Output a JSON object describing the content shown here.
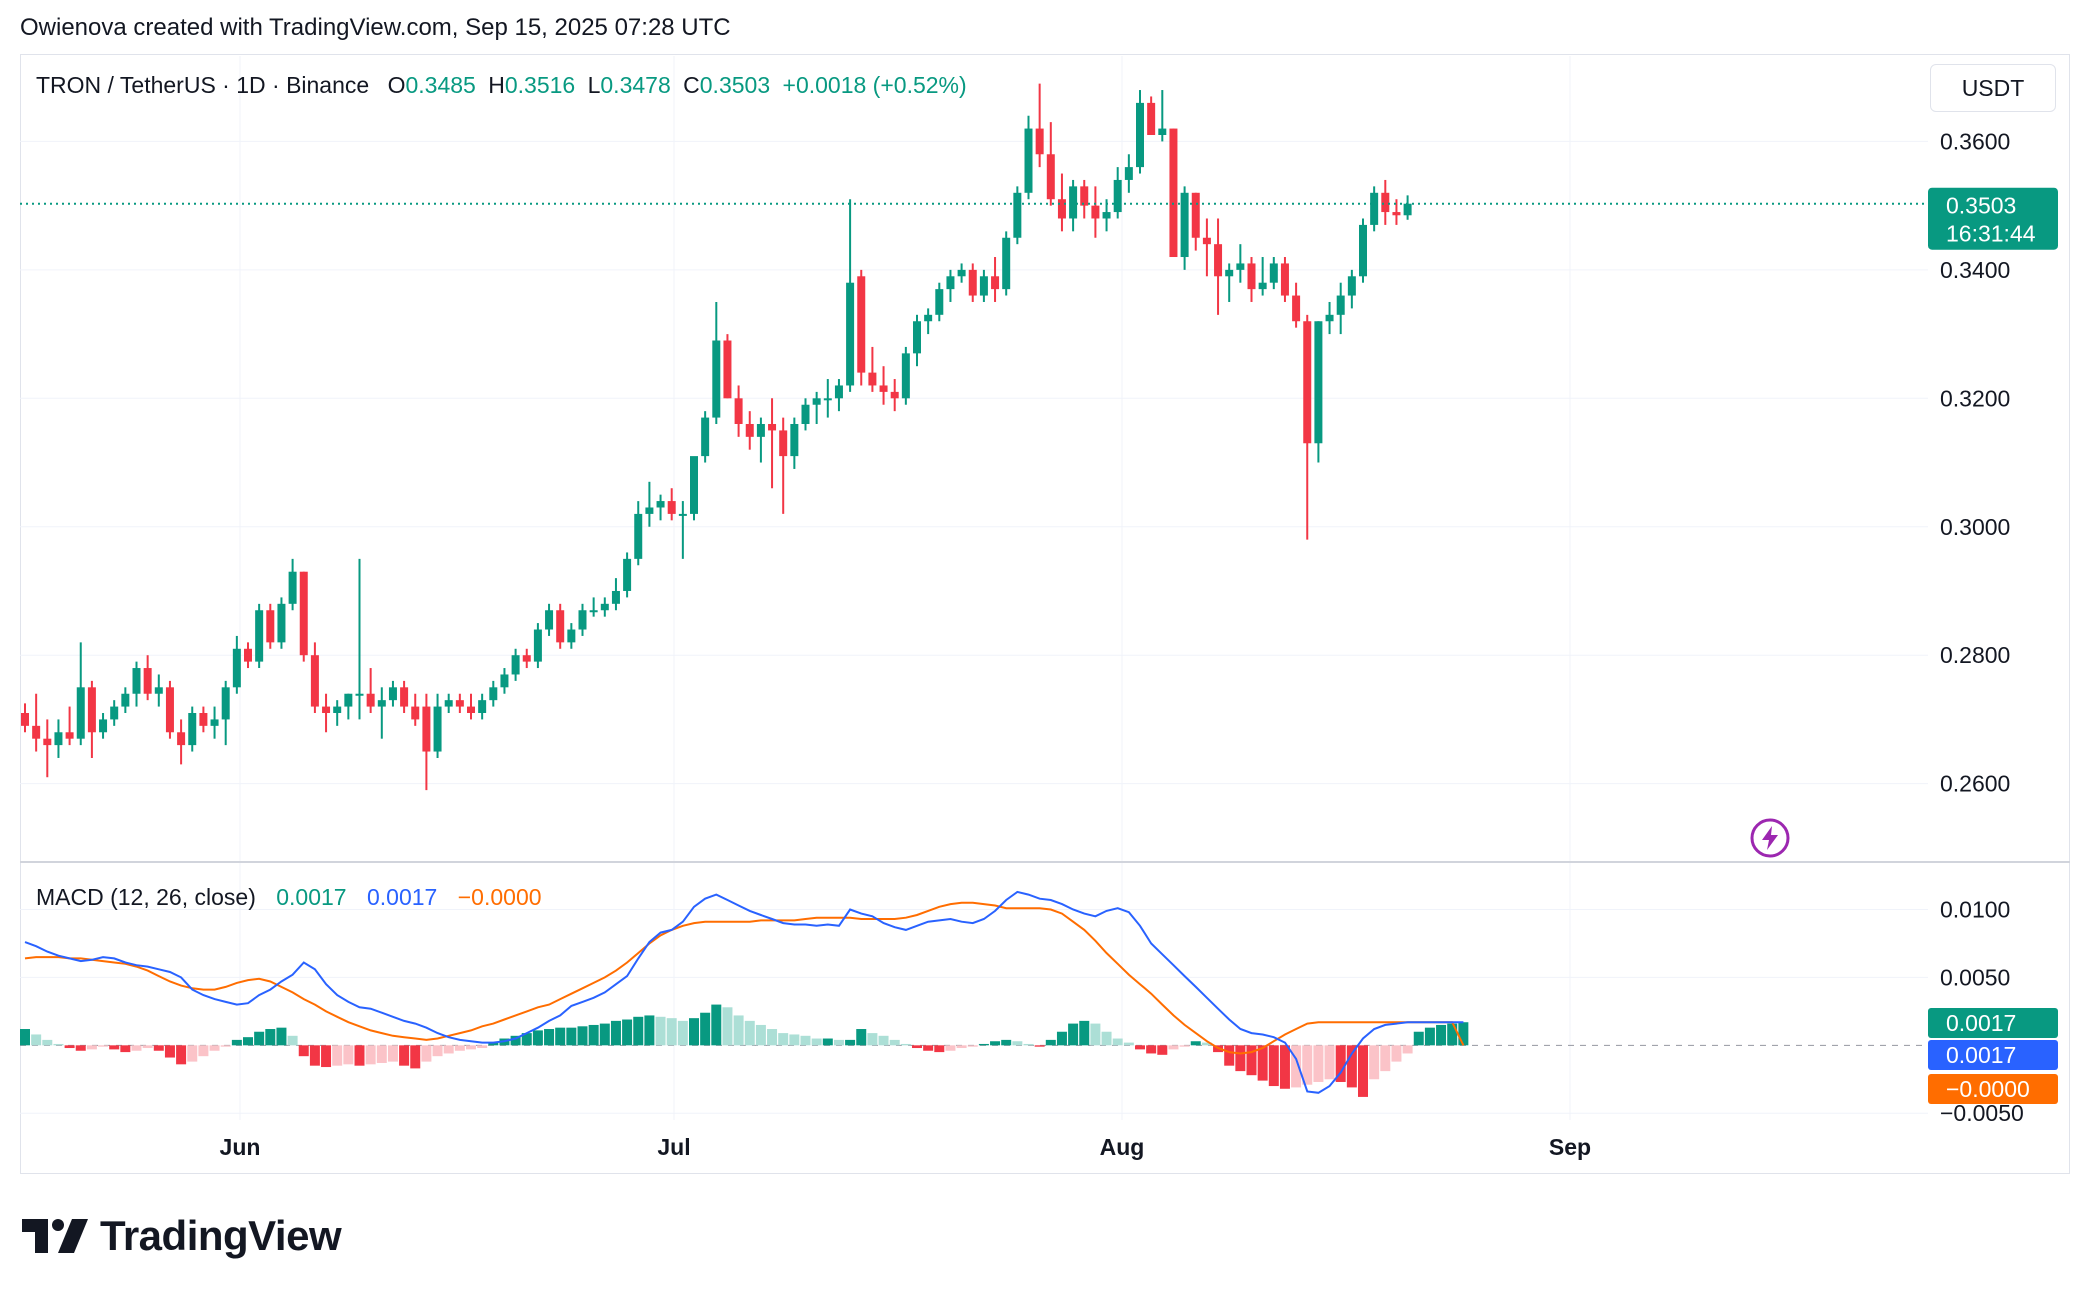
{
  "credit": "Owienova created with TradingView.com, Sep 15, 2025 07:28 UTC",
  "brand": "TradingView",
  "legend": {
    "symbol": "TRON / TetherUS · 1D · Binance",
    "o_label": "O",
    "o_value": "0.3485",
    "h_label": "H",
    "h_value": "0.3516",
    "l_label": "L",
    "l_value": "0.3478",
    "c_label": "C",
    "c_value": "0.3503",
    "change": "+0.0018 (+0.52%)"
  },
  "currency": "USDT",
  "price_badge": {
    "price": "0.3503",
    "countdown": "16:31:44"
  },
  "macd_legend": {
    "title": "MACD (12, 26, close)",
    "histogram": "0.0017",
    "macd": "0.0017",
    "signal": "−0.0000"
  },
  "macd_badges": [
    "0.0017",
    "0.0017",
    "−0.0000"
  ],
  "colors": {
    "up": "#089981",
    "down": "#f23645",
    "up_light": "#acdfd6",
    "down_light": "#fbc3c8",
    "macd": "#2962ff",
    "signal": "#ff6d00",
    "grid": "#f0f3fa"
  },
  "chart_data": [
    {
      "type": "candlestick",
      "title": "TRON / TetherUS · 1D · Binance",
      "x_tick_labels": [
        "Jun",
        "Jul",
        "Aug",
        "Sep"
      ],
      "y_tick_labels": [
        "0.3600",
        "0.3400",
        "0.3200",
        "0.3000",
        "0.2800",
        "0.2600"
      ],
      "ylim": [
        0.2478,
        0.3733
      ],
      "last_price": 0.3503,
      "candles": [
        [
          0.271,
          0.2725,
          0.268,
          0.269
        ],
        [
          0.269,
          0.274,
          0.265,
          0.267
        ],
        [
          0.267,
          0.27,
          0.261,
          0.266
        ],
        [
          0.266,
          0.27,
          0.264,
          0.268
        ],
        [
          0.268,
          0.272,
          0.266,
          0.267
        ],
        [
          0.267,
          0.282,
          0.266,
          0.275
        ],
        [
          0.275,
          0.276,
          0.264,
          0.268
        ],
        [
          0.268,
          0.271,
          0.267,
          0.27
        ],
        [
          0.27,
          0.273,
          0.269,
          0.272
        ],
        [
          0.272,
          0.275,
          0.271,
          0.274
        ],
        [
          0.274,
          0.279,
          0.272,
          0.278
        ],
        [
          0.278,
          0.28,
          0.273,
          0.274
        ],
        [
          0.274,
          0.277,
          0.272,
          0.275
        ],
        [
          0.275,
          0.276,
          0.267,
          0.268
        ],
        [
          0.268,
          0.27,
          0.263,
          0.266
        ],
        [
          0.266,
          0.272,
          0.265,
          0.271
        ],
        [
          0.271,
          0.272,
          0.268,
          0.269
        ],
        [
          0.269,
          0.272,
          0.267,
          0.27
        ],
        [
          0.27,
          0.276,
          0.266,
          0.275
        ],
        [
          0.275,
          0.283,
          0.274,
          0.281
        ],
        [
          0.281,
          0.282,
          0.278,
          0.279
        ],
        [
          0.279,
          0.288,
          0.278,
          0.287
        ],
        [
          0.287,
          0.288,
          0.281,
          0.282
        ],
        [
          0.282,
          0.289,
          0.281,
          0.288
        ],
        [
          0.288,
          0.295,
          0.287,
          0.293
        ],
        [
          0.293,
          0.293,
          0.279,
          0.28
        ],
        [
          0.28,
          0.282,
          0.271,
          0.272
        ],
        [
          0.272,
          0.274,
          0.268,
          0.271
        ],
        [
          0.271,
          0.273,
          0.269,
          0.272
        ],
        [
          0.272,
          0.274,
          0.27,
          0.274
        ],
        [
          0.274,
          0.295,
          0.27,
          0.274
        ],
        [
          0.274,
          0.278,
          0.271,
          0.272
        ],
        [
          0.272,
          0.275,
          0.267,
          0.273
        ],
        [
          0.273,
          0.276,
          0.272,
          0.275
        ],
        [
          0.275,
          0.276,
          0.271,
          0.272
        ],
        [
          0.272,
          0.274,
          0.269,
          0.27
        ],
        [
          0.272,
          0.274,
          0.259,
          0.265
        ],
        [
          0.265,
          0.274,
          0.264,
          0.272
        ],
        [
          0.272,
          0.274,
          0.271,
          0.273
        ],
        [
          0.273,
          0.274,
          0.271,
          0.272
        ],
        [
          0.272,
          0.274,
          0.27,
          0.271
        ],
        [
          0.271,
          0.274,
          0.27,
          0.273
        ],
        [
          0.273,
          0.276,
          0.272,
          0.275
        ],
        [
          0.275,
          0.278,
          0.274,
          0.277
        ],
        [
          0.277,
          0.281,
          0.276,
          0.28
        ],
        [
          0.28,
          0.281,
          0.278,
          0.279
        ],
        [
          0.279,
          0.285,
          0.278,
          0.284
        ],
        [
          0.284,
          0.288,
          0.283,
          0.287
        ],
        [
          0.287,
          0.288,
          0.281,
          0.282
        ],
        [
          0.282,
          0.285,
          0.281,
          0.284
        ],
        [
          0.284,
          0.288,
          0.283,
          0.287
        ],
        [
          0.287,
          0.289,
          0.286,
          0.287
        ],
        [
          0.287,
          0.289,
          0.286,
          0.288
        ],
        [
          0.288,
          0.292,
          0.287,
          0.29
        ],
        [
          0.29,
          0.296,
          0.289,
          0.295
        ],
        [
          0.295,
          0.304,
          0.294,
          0.302
        ],
        [
          0.302,
          0.307,
          0.3,
          0.303
        ],
        [
          0.303,
          0.305,
          0.301,
          0.304
        ],
        [
          0.304,
          0.306,
          0.301,
          0.302
        ],
        [
          0.302,
          0.304,
          0.295,
          0.302
        ],
        [
          0.302,
          0.31,
          0.301,
          0.311
        ],
        [
          0.311,
          0.318,
          0.31,
          0.317
        ],
        [
          0.317,
          0.335,
          0.316,
          0.329
        ],
        [
          0.329,
          0.33,
          0.32,
          0.32
        ],
        [
          0.32,
          0.322,
          0.314,
          0.316
        ],
        [
          0.316,
          0.318,
          0.312,
          0.314
        ],
        [
          0.314,
          0.317,
          0.31,
          0.316
        ],
        [
          0.316,
          0.32,
          0.306,
          0.315
        ],
        [
          0.315,
          0.317,
          0.302,
          0.311
        ],
        [
          0.311,
          0.317,
          0.309,
          0.316
        ],
        [
          0.316,
          0.32,
          0.315,
          0.319
        ],
        [
          0.319,
          0.321,
          0.316,
          0.32
        ],
        [
          0.32,
          0.323,
          0.317,
          0.32
        ],
        [
          0.32,
          0.323,
          0.318,
          0.322
        ],
        [
          0.322,
          0.351,
          0.321,
          0.338
        ],
        [
          0.339,
          0.34,
          0.322,
          0.324
        ],
        [
          0.324,
          0.328,
          0.321,
          0.322
        ],
        [
          0.322,
          0.325,
          0.319,
          0.321
        ],
        [
          0.321,
          0.323,
          0.318,
          0.32
        ],
        [
          0.32,
          0.328,
          0.319,
          0.327
        ],
        [
          0.327,
          0.333,
          0.325,
          0.332
        ],
        [
          0.332,
          0.334,
          0.33,
          0.333
        ],
        [
          0.333,
          0.338,
          0.332,
          0.337
        ],
        [
          0.337,
          0.34,
          0.335,
          0.339
        ],
        [
          0.339,
          0.341,
          0.338,
          0.34
        ],
        [
          0.34,
          0.341,
          0.335,
          0.336
        ],
        [
          0.336,
          0.34,
          0.335,
          0.339
        ],
        [
          0.339,
          0.342,
          0.335,
          0.337
        ],
        [
          0.337,
          0.346,
          0.336,
          0.345
        ],
        [
          0.345,
          0.353,
          0.344,
          0.352
        ],
        [
          0.352,
          0.364,
          0.351,
          0.362
        ],
        [
          0.362,
          0.369,
          0.356,
          0.358
        ],
        [
          0.358,
          0.363,
          0.35,
          0.351
        ],
        [
          0.351,
          0.355,
          0.346,
          0.348
        ],
        [
          0.348,
          0.354,
          0.346,
          0.353
        ],
        [
          0.353,
          0.354,
          0.348,
          0.35
        ],
        [
          0.35,
          0.353,
          0.345,
          0.348
        ],
        [
          0.348,
          0.351,
          0.346,
          0.349
        ],
        [
          0.349,
          0.356,
          0.348,
          0.354
        ],
        [
          0.354,
          0.358,
          0.352,
          0.356
        ],
        [
          0.356,
          0.368,
          0.355,
          0.366
        ],
        [
          0.366,
          0.367,
          0.361,
          0.361
        ],
        [
          0.361,
          0.368,
          0.36,
          0.362
        ],
        [
          0.362,
          0.362,
          0.342,
          0.342
        ],
        [
          0.342,
          0.353,
          0.34,
          0.352
        ],
        [
          0.352,
          0.352,
          0.343,
          0.345
        ],
        [
          0.345,
          0.348,
          0.339,
          0.344
        ],
        [
          0.344,
          0.348,
          0.333,
          0.339
        ],
        [
          0.339,
          0.341,
          0.335,
          0.34
        ],
        [
          0.34,
          0.344,
          0.338,
          0.341
        ],
        [
          0.341,
          0.342,
          0.335,
          0.337
        ],
        [
          0.337,
          0.342,
          0.336,
          0.338
        ],
        [
          0.338,
          0.342,
          0.337,
          0.341
        ],
        [
          0.341,
          0.342,
          0.335,
          0.336
        ],
        [
          0.336,
          0.338,
          0.331,
          0.332
        ],
        [
          0.332,
          0.333,
          0.298,
          0.313
        ],
        [
          0.313,
          0.332,
          0.31,
          0.332
        ],
        [
          0.332,
          0.335,
          0.33,
          0.333
        ],
        [
          0.333,
          0.338,
          0.33,
          0.336
        ],
        [
          0.336,
          0.34,
          0.334,
          0.339
        ],
        [
          0.339,
          0.348,
          0.338,
          0.347
        ],
        [
          0.347,
          0.353,
          0.346,
          0.352
        ],
        [
          0.352,
          0.354,
          0.347,
          0.349
        ],
        [
          0.349,
          0.351,
          0.347,
          0.3485
        ],
        [
          0.3485,
          0.3516,
          0.3478,
          0.3503
        ]
      ]
    },
    {
      "type": "macd",
      "title": "MACD (12, 26, close)",
      "y_tick_labels": [
        "0.0100",
        "0.0050",
        "−0.0050"
      ],
      "ylim": [
        -0.0055,
        0.0135
      ],
      "histogram": [
        0.0012,
        0.0008,
        0.0004,
        0.0001,
        -0.0002,
        -0.0004,
        -0.0003,
        -0.0001,
        -0.0003,
        -0.0005,
        -0.0004,
        -0.0002,
        -0.0004,
        -0.0009,
        -0.0014,
        -0.0012,
        -0.0008,
        -0.0004,
        -0.0001,
        0.0004,
        0.0006,
        0.001,
        0.0012,
        0.0013,
        0.0007,
        -0.0008,
        -0.0015,
        -0.0016,
        -0.0015,
        -0.0014,
        -0.0015,
        -0.0014,
        -0.0013,
        -0.0012,
        -0.0015,
        -0.0017,
        -0.0012,
        -0.0008,
        -0.0006,
        -0.0004,
        -0.0003,
        -0.0002,
        0.0002,
        0.0005,
        0.0007,
        0.0009,
        0.0011,
        0.0012,
        0.0013,
        0.0013,
        0.0014,
        0.0015,
        0.0016,
        0.0018,
        0.0019,
        0.0021,
        0.0022,
        0.0021,
        0.002,
        0.0018,
        0.002,
        0.0024,
        0.003,
        0.0028,
        0.0022,
        0.0018,
        0.0015,
        0.0012,
        0.0009,
        0.0008,
        0.0007,
        0.0005,
        0.0005,
        0.0004,
        0.0004,
        0.0012,
        0.0009,
        0.0007,
        0.0004,
        0.0001,
        -0.0002,
        -0.0004,
        -0.0005,
        -0.0004,
        -0.0002,
        -0.0001,
        0.0001,
        0.0003,
        0.0004,
        0.0003,
        0.0001,
        -0.0001,
        0.0004,
        0.001,
        0.0016,
        0.0018,
        0.0016,
        0.001,
        0.0005,
        0.0002,
        -0.0003,
        -0.0006,
        -0.0007,
        -0.0003,
        -0.0001,
        0.0003,
        0.0002,
        -0.0005,
        -0.0015,
        -0.0019,
        -0.0022,
        -0.0026,
        -0.003,
        -0.0032,
        -0.0031,
        -0.0029,
        -0.0027,
        -0.0025,
        -0.0027,
        -0.0031,
        -0.0038,
        -0.0025,
        -0.0019,
        -0.0012,
        -0.0006,
        0.001,
        0.0013,
        0.0015,
        0.0016,
        0.0017
      ],
      "macd": [
        0.0076,
        0.0073,
        0.0069,
        0.0066,
        0.0064,
        0.0062,
        0.0063,
        0.0065,
        0.0064,
        0.0061,
        0.0059,
        0.0058,
        0.0056,
        0.0054,
        0.005,
        0.0041,
        0.0037,
        0.0034,
        0.0032,
        0.003,
        0.0031,
        0.0037,
        0.0041,
        0.0047,
        0.0052,
        0.0061,
        0.0056,
        0.0045,
        0.0037,
        0.0032,
        0.0028,
        0.0027,
        0.0024,
        0.0021,
        0.0018,
        0.0016,
        0.0013,
        0.0009,
        0.0006,
        0.0004,
        0.0003,
        0.0002,
        0.0002,
        0.0003,
        0.0005,
        0.0009,
        0.0013,
        0.0018,
        0.0022,
        0.0029,
        0.0032,
        0.0035,
        0.0039,
        0.0045,
        0.0051,
        0.0064,
        0.0076,
        0.0083,
        0.0085,
        0.0091,
        0.0102,
        0.0108,
        0.0111,
        0.0107,
        0.0103,
        0.0099,
        0.0096,
        0.0093,
        0.009,
        0.0089,
        0.0089,
        0.0088,
        0.0089,
        0.0088,
        0.01,
        0.0097,
        0.0095,
        0.009,
        0.0087,
        0.0085,
        0.0088,
        0.0091,
        0.0092,
        0.0093,
        0.0091,
        0.009,
        0.0093,
        0.0099,
        0.0107,
        0.0113,
        0.0111,
        0.0108,
        0.0107,
        0.0104,
        0.01,
        0.0097,
        0.0095,
        0.0099,
        0.0101,
        0.0098,
        0.0088,
        0.0075,
        0.0067,
        0.0059,
        0.0051,
        0.0043,
        0.0035,
        0.0027,
        0.0019,
        0.0012,
        0.0009,
        0.0008,
        0.0006,
        0.0002,
        -0.001,
        -0.0034,
        -0.0035,
        -0.003,
        -0.002,
        -0.0006,
        0.0005,
        0.0012,
        0.0015,
        0.0016,
        0.0017,
        0.0017,
        0.0017,
        0.0017,
        0.0017,
        0.0017
      ],
      "signal": [
        0.0064,
        0.0065,
        0.0065,
        0.0065,
        0.0064,
        0.0064,
        0.0063,
        0.0062,
        0.0061,
        0.006,
        0.0058,
        0.0055,
        0.0051,
        0.0047,
        0.0044,
        0.0042,
        0.0041,
        0.0041,
        0.0043,
        0.0046,
        0.0048,
        0.0049,
        0.0047,
        0.0043,
        0.0039,
        0.0034,
        0.003,
        0.0025,
        0.0021,
        0.0017,
        0.0014,
        0.0011,
        0.0009,
        0.0007,
        0.0006,
        0.0005,
        0.0004,
        0.0005,
        0.0007,
        0.0009,
        0.0011,
        0.0014,
        0.0016,
        0.0019,
        0.0022,
        0.0025,
        0.0028,
        0.003,
        0.0034,
        0.0038,
        0.0042,
        0.0046,
        0.005,
        0.0055,
        0.0061,
        0.0068,
        0.0075,
        0.0081,
        0.0085,
        0.0088,
        0.009,
        0.0091,
        0.0091,
        0.0091,
        0.0091,
        0.0091,
        0.0092,
        0.0092,
        0.0092,
        0.0092,
        0.0093,
        0.0094,
        0.0094,
        0.0094,
        0.0094,
        0.0093,
        0.0093,
        0.0093,
        0.0093,
        0.0094,
        0.0096,
        0.0099,
        0.0102,
        0.0104,
        0.0105,
        0.0105,
        0.0104,
        0.0103,
        0.0101,
        0.0101,
        0.0101,
        0.0101,
        0.01,
        0.0097,
        0.0091,
        0.0085,
        0.0077,
        0.0068,
        0.006,
        0.0052,
        0.0045,
        0.0038,
        0.003,
        0.0022,
        0.0015,
        0.0009,
        0.0003,
        -0.0002,
        -0.0005,
        -0.0006,
        -0.0005,
        -0.0002,
        0.0003,
        0.0008,
        0.0012,
        0.0016,
        0.0017,
        0.0017,
        0.0017,
        0.0017,
        0.0017,
        0.0017,
        0.0017,
        0.0017,
        0.0017,
        0.0017,
        0.0017,
        0.0017,
        0.0017,
        -0.0
      ]
    }
  ]
}
